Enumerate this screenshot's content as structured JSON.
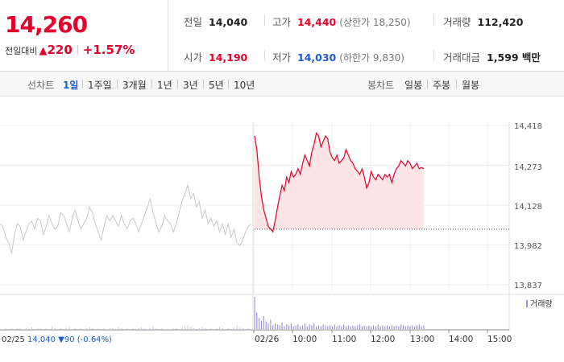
{
  "quote": {
    "price": "14,260",
    "change_label": "전일대비",
    "change_arrow": "▲",
    "change_amount": "220",
    "change_percent": "+1.57%"
  },
  "stats": {
    "prev_close": {
      "label": "전일",
      "value": "14,040"
    },
    "open": {
      "label": "시가",
      "value": "14,190"
    },
    "high": {
      "label": "고가",
      "value": "14,440",
      "sub": "(상한가 18,250)"
    },
    "low": {
      "label": "저가",
      "value": "14,030",
      "sub": "(하한가 9,830)"
    },
    "volume": {
      "label": "거래량",
      "value": "112,420"
    },
    "amount": {
      "label": "거래대금",
      "value": "1,599 백만"
    }
  },
  "line_tabs": {
    "title": "선차트",
    "items": [
      {
        "label": "1일",
        "active": true
      },
      {
        "label": "1주일"
      },
      {
        "label": "3개월"
      },
      {
        "label": "1년"
      },
      {
        "label": "3년"
      },
      {
        "label": "5년"
      },
      {
        "label": "10년"
      }
    ]
  },
  "candle_tabs": {
    "title": "봉차트",
    "items": [
      {
        "label": "일봉"
      },
      {
        "label": "주봉"
      },
      {
        "label": "월봉"
      }
    ]
  },
  "colors": {
    "up": "#e4002b",
    "down": "#1a5bd6",
    "prev_line": "#c8c8c8",
    "fill": "#fde4e6"
  },
  "chart_data": {
    "type": "line",
    "y_ticks": [
      "14,418",
      "14,273",
      "14,128",
      "13,982",
      "13,837"
    ],
    "ylim": [
      13837,
      14418
    ],
    "x_ticks": [
      "02/26",
      "10:00",
      "11:00",
      "12:00",
      "13:00",
      "14:00",
      "15:00"
    ],
    "prev_day_label": "02/25",
    "prev_day_info": "14,040 ▼90 (-0.64%)",
    "volume_legend": "거래량",
    "prev_close": 14040,
    "prev_day_series": [
      14060,
      14050,
      14010,
      13990,
      13950,
      14020,
      14060,
      14050,
      14000,
      14030,
      14060,
      14070,
      14040,
      14080,
      14070,
      14020,
      14050,
      14090,
      14060,
      14040,
      14050,
      14100,
      14090,
      14060,
      14030,
      14080,
      14110,
      14070,
      14040,
      14060,
      14080,
      14120,
      14100,
      14060,
      14030,
      14000,
      14050,
      14090,
      14070,
      14090,
      14070,
      14050,
      14090,
      14060,
      14040,
      14070,
      14080,
      14060,
      14030,
      14060,
      14090,
      14120,
      14150,
      14100,
      14060,
      14030,
      14050,
      14090,
      14070,
      14060,
      14030,
      14060,
      14100,
      14140,
      14170,
      14200,
      14150,
      14170,
      14120,
      14140,
      14080,
      14110,
      14060,
      14080,
      14050,
      14070,
      14030,
      14060,
      14020,
      14060,
      14010,
      14040,
      13990,
      13980,
      14000,
      14030,
      14050,
      14060
    ],
    "today_series": [
      14380,
      14330,
      14230,
      14160,
      14110,
      14080,
      14050,
      14040,
      14030,
      14070,
      14120,
      14160,
      14200,
      14180,
      14230,
      14210,
      14250,
      14230,
      14240,
      14260,
      14240,
      14280,
      14310,
      14290,
      14270,
      14320,
      14350,
      14390,
      14380,
      14340,
      14360,
      14380,
      14370,
      14320,
      14300,
      14290,
      14310,
      14280,
      14290,
      14300,
      14330,
      14310,
      14290,
      14280,
      14260,
      14250,
      14240,
      14260,
      14230,
      14190,
      14210,
      14250,
      14230,
      14220,
      14240,
      14230,
      14220,
      14240,
      14230,
      14240,
      14210,
      14240,
      14260,
      14270,
      14290,
      14280,
      14270,
      14290,
      14280,
      14260,
      14270,
      14280,
      14260,
      14265,
      14260
    ],
    "prev_day_volume": [
      1,
      0,
      1,
      0,
      1,
      0,
      1,
      1,
      0,
      1,
      0,
      2,
      0,
      1,
      1,
      0,
      1,
      0,
      3,
      1,
      0,
      1,
      0,
      1,
      2,
      0,
      1,
      0,
      1,
      0,
      1,
      2,
      1,
      0,
      1,
      0,
      1,
      0,
      1,
      1,
      0,
      2,
      1,
      0,
      1,
      0,
      1,
      0,
      1,
      2,
      1,
      0,
      1,
      3,
      1,
      0,
      1,
      0,
      1,
      0,
      1,
      1,
      0,
      2,
      3,
      4,
      2,
      1,
      0,
      1,
      2,
      1,
      0,
      1,
      0,
      1,
      2,
      1,
      0,
      1,
      0,
      2,
      4,
      2,
      1,
      0,
      1,
      0
    ],
    "today_volume": [
      35,
      18,
      12,
      9,
      14,
      8,
      6,
      10,
      4,
      6,
      5,
      4,
      7,
      3,
      5,
      4,
      6,
      3,
      4,
      5,
      3,
      4,
      6,
      3,
      5,
      4,
      6,
      3,
      4,
      3,
      5,
      4,
      3,
      4,
      3,
      5,
      3,
      4,
      3,
      5,
      3,
      4,
      3,
      4,
      3,
      4,
      5,
      3,
      4,
      3,
      4,
      3,
      4,
      3,
      5,
      3,
      4,
      3,
      4,
      3,
      4,
      3,
      4,
      3,
      5,
      4,
      3,
      4,
      3,
      4,
      3,
      4,
      5,
      3,
      4
    ]
  }
}
